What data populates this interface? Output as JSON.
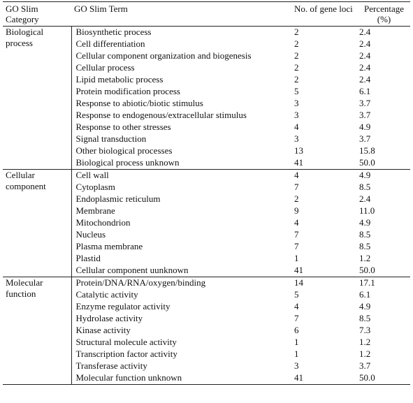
{
  "header": {
    "category": "GO Slim Category",
    "term": "GO Slim Term",
    "loci": "No. of gene loci",
    "percentage": "Percentage (%)"
  },
  "groups": [
    {
      "category": "Biological process",
      "rows": [
        {
          "term": "Biosynthetic process",
          "loci": "2",
          "pct": "2.4"
        },
        {
          "term": "Cell differentiation",
          "loci": "2",
          "pct": "2.4"
        },
        {
          "term": "Cellular component organization and biogenesis",
          "loci": "2",
          "pct": "2.4"
        },
        {
          "term": "Cellular process",
          "loci": "2",
          "pct": "2.4"
        },
        {
          "term": "Lipid metabolic process",
          "loci": "2",
          "pct": "2.4"
        },
        {
          "term": "Protein modification process",
          "loci": "5",
          "pct": "6.1"
        },
        {
          "term": "Response to abiotic/biotic stimulus",
          "loci": "3",
          "pct": "3.7"
        },
        {
          "term": "Response to endogenous/extracellular stimulus",
          "loci": "3",
          "pct": "3.7"
        },
        {
          "term": "Response to other stresses",
          "loci": "4",
          "pct": "4.9"
        },
        {
          "term": "Signal transduction",
          "loci": "3",
          "pct": "3.7"
        },
        {
          "term": "Other biological processes",
          "loci": "13",
          "pct": "15.8"
        },
        {
          "term": "Biological process unknown",
          "loci": "41",
          "pct": "50.0"
        }
      ]
    },
    {
      "category": "Cellular component",
      "rows": [
        {
          "term": "Cell wall",
          "loci": "4",
          "pct": "4.9"
        },
        {
          "term": "Cytoplasm",
          "loci": "7",
          "pct": "8.5"
        },
        {
          "term": "Endoplasmic reticulum",
          "loci": "2",
          "pct": "2.4"
        },
        {
          "term": "Membrane",
          "loci": "9",
          "pct": "11.0"
        },
        {
          "term": "Mitochondrion",
          "loci": "4",
          "pct": "4.9"
        },
        {
          "term": "Nucleus",
          "loci": "7",
          "pct": "8.5"
        },
        {
          "term": "Plasma membrane",
          "loci": "7",
          "pct": "8.5"
        },
        {
          "term": "Plastid",
          "loci": "1",
          "pct": "1.2"
        },
        {
          "term": "Cellular component uunknown",
          "loci": "41",
          "pct": "50.0"
        }
      ]
    },
    {
      "category": "Molecular function",
      "rows": [
        {
          "term": "Protein/DNA/RNA/oxygen/binding",
          "loci": "14",
          "pct": "17.1"
        },
        {
          "term": "Catalytic activity",
          "loci": "5",
          "pct": "6.1"
        },
        {
          "term": "Enzyme regulator activity",
          "loci": "4",
          "pct": "4.9"
        },
        {
          "term": "Hydrolase activity",
          "loci": "7",
          "pct": "8.5"
        },
        {
          "term": "Kinase activity",
          "loci": "6",
          "pct": "7.3"
        },
        {
          "term": "Structural molecule activity",
          "loci": "1",
          "pct": "1.2"
        },
        {
          "term": "Transcription factor activity",
          "loci": "1",
          "pct": "1.2"
        },
        {
          "term": "Transferase activity",
          "loci": "3",
          "pct": "3.7"
        },
        {
          "term": "Molecular function unknown",
          "loci": "41",
          "pct": "50.0"
        }
      ]
    }
  ]
}
